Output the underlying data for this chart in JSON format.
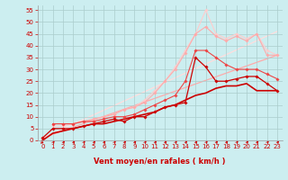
{
  "title": "",
  "xlabel": "Vent moyen/en rafales ( km/h )",
  "ylabel": "",
  "background_color": "#cceef0",
  "grid_color": "#aacccc",
  "xlim": [
    -0.5,
    23.5
  ],
  "ylim": [
    0,
    57
  ],
  "yticks": [
    0,
    5,
    10,
    15,
    20,
    25,
    30,
    35,
    40,
    45,
    50,
    55
  ],
  "xticks": [
    0,
    1,
    2,
    3,
    4,
    5,
    6,
    7,
    8,
    9,
    10,
    11,
    12,
    13,
    14,
    15,
    16,
    17,
    18,
    19,
    20,
    21,
    22,
    23
  ],
  "series": [
    {
      "x": [
        0,
        1,
        2,
        3,
        4,
        5,
        6,
        7,
        8,
        9,
        10,
        11,
        12,
        13,
        14,
        15,
        16,
        17,
        18,
        19,
        20,
        21,
        22,
        23
      ],
      "y": [
        1,
        5,
        5,
        5,
        6,
        7,
        8,
        9,
        8,
        10,
        10,
        12,
        14,
        15,
        16,
        35,
        31,
        25,
        25,
        26,
        27,
        27,
        24,
        21
      ],
      "color": "#cc0000",
      "lw": 0.9,
      "marker": "D",
      "ms": 1.8,
      "zorder": 5
    },
    {
      "x": [
        0,
        1,
        2,
        3,
        4,
        5,
        6,
        7,
        8,
        9,
        10,
        11,
        12,
        13,
        14,
        15,
        16,
        17,
        18,
        19,
        20,
        21,
        22,
        23
      ],
      "y": [
        0,
        3,
        4,
        5,
        6,
        7,
        7,
        8,
        9,
        10,
        11,
        12,
        14,
        15,
        17,
        19,
        20,
        22,
        23,
        23,
        24,
        21,
        21,
        21
      ],
      "color": "#cc0000",
      "lw": 1.2,
      "marker": null,
      "ms": 0,
      "zorder": 3
    },
    {
      "x": [
        1,
        2,
        3,
        4,
        5,
        6,
        7,
        8,
        9,
        10,
        11,
        12,
        13,
        14,
        15,
        16,
        17,
        18,
        19,
        20,
        21,
        22,
        23
      ],
      "y": [
        7,
        7,
        7,
        8,
        8,
        9,
        10,
        10,
        11,
        13,
        15,
        17,
        19,
        25,
        38,
        38,
        35,
        32,
        30,
        30,
        30,
        28,
        26
      ],
      "color": "#ee4444",
      "lw": 0.8,
      "marker": "D",
      "ms": 1.8,
      "zorder": 4
    },
    {
      "x": [
        1,
        2,
        3,
        4,
        5,
        6,
        7,
        8,
        9,
        10,
        11,
        12,
        13,
        14,
        15,
        16,
        17,
        18,
        19,
        20,
        21,
        22,
        23
      ],
      "y": [
        7,
        7,
        7,
        8,
        9,
        10,
        11,
        13,
        14,
        16,
        20,
        25,
        30,
        37,
        45,
        48,
        44,
        42,
        44,
        42,
        45,
        36,
        36
      ],
      "color": "#ffaaaa",
      "lw": 0.8,
      "marker": "D",
      "ms": 1.8,
      "zorder": 3
    },
    {
      "x": [
        1,
        2,
        3,
        4,
        5,
        6,
        7,
        8,
        9,
        10,
        11,
        12,
        13,
        14,
        15,
        16,
        17,
        18,
        19,
        20,
        21,
        22,
        23
      ],
      "y": [
        6,
        6,
        7,
        8,
        9,
        10,
        11,
        13,
        14,
        17,
        21,
        25,
        31,
        38,
        45,
        55,
        45,
        43,
        45,
        43,
        45,
        38,
        36
      ],
      "color": "#ffcccc",
      "lw": 0.8,
      "marker": "D",
      "ms": 1.8,
      "zorder": 2
    },
    {
      "x": [
        0,
        23
      ],
      "y": [
        1,
        36
      ],
      "color": "#ffaaaa",
      "lw": 0.9,
      "marker": null,
      "ms": 0,
      "zorder": 1
    },
    {
      "x": [
        0,
        23
      ],
      "y": [
        1,
        46
      ],
      "color": "#ffdddd",
      "lw": 0.9,
      "marker": null,
      "ms": 0,
      "zorder": 1
    }
  ],
  "tick_fontsize": 5.0,
  "xlabel_fontsize": 6.0,
  "xlabel_color": "#cc0000",
  "tick_color": "#cc0000",
  "arrow_color": "#cc0000"
}
